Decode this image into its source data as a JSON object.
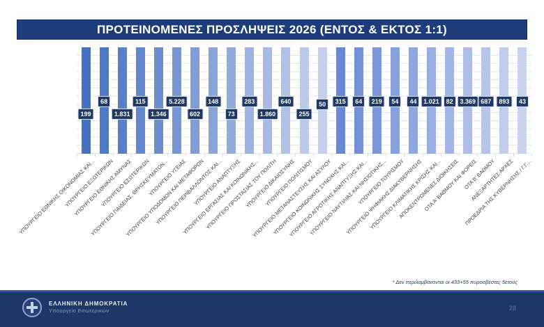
{
  "slide": {
    "title": "ΠΡΟΤΕΙΝΟΜΕΝΕΣ ΠΡΟΣΛΗΨΕΙΣ 2026 (ΕΝΤΟΣ & ΕΚΤΟΣ 1:1)",
    "footnote": "* Δεν περιλαμβάνονται οι 433+55 πυροσβέστες 5ετούς",
    "page_number": "28",
    "footer": {
      "org_name": "ΕΛΛΗΝΙΚΗ ΔΗΜΟΚΡΑΤΙΑ",
      "org_sub": "Υπουργείο Εσωτερικών"
    },
    "colors": {
      "title_bg": "#1E3B7A",
      "footer_bg": "#1C3768",
      "accent_line": "#2C55A5",
      "data_label_bg": "#1F3864"
    }
  },
  "chart_data": {
    "type": "bar",
    "title": "ΠΡΟΤΕΙΝΟΜΕΝΕΣ ΠΡΟΣΛΗΨΕΙΣ 2026 (ΕΝΤΟΣ & ΕΚΤΟΣ 1:1)",
    "categories": [
      "ΥΠΟΥΡΓΕΙΟ ΕΘΝΙΚΗΣ ΟΙΚΟΝΟΜΙΑΣ ΚΑΙ...",
      "ΥΠΟΥΡΓΕΙΟ ΕΞΩΤΕΡΙΚΩΝ",
      "ΥΠΟΥΡΓΕΙΟ ΕΘΝΙΚΗΣ ΑΜΥΝΑΣ",
      "ΥΠΟΥΡΓΕΙΟ ΕΣΩΤΕΡΙΚΩΝ",
      "ΥΠΟΥΡΓΕΙΟ ΠΑΙΔΕΙΑΣ, ΘΡΗΣΚΕΥΜΑΤΩΝ...",
      "ΥΠΟΥΡΓΕΙΟ ΥΓΕΙΑΣ",
      "ΥΠΟΥΡΓΕΙΟ ΥΠΟΔΟΜΩΝ ΚΑΙ ΜΕΤΑΦΟΡΩΝ",
      "ΥΠΟΥΡΓΕΙΟ ΠΕΡΙΒΑΛΛΟΝΤΟΣ ΚΑΙ...",
      "ΥΠΟΥΡΓΕΙΟ ΑΝΑΠΤΥΞΗΣ",
      "ΥΠΟΥΡΓΕΙΟ ΕΡΓΑΣΙΑΣ ΚΑΙ ΚΟΙΝΩΝΙΚΗΣ...",
      "ΥΠΟΥΡΓΕΙΟ ΠΡΟΣΤΑΣΙΑΣ ΤΟΥ ΠΟΛΙΤΗ",
      "ΥΠΟΥΡΓΕΙΟ ΔΙΚΑΙΟΣΥΝΗΣ",
      "ΥΠΟΥΡΓΕΙΟ ΠΟΛΙΤΙΣΜΟΥ",
      "ΥΠΟΥΡΓΕΙΟ ΜΕΤΑΝΑΣΤΕΥΣΗΣ ΚΑΙ ΑΣΥΛΟΥ",
      "ΥΠΟΥΡΓΕΙΟ ΚΟΙΝΩΝΙΚΗΣ ΣΥΝΟΧΗΣ ΚΑΙ...",
      "ΥΠΟΥΡΓΕΙΟ ΑΓΡΟΤΙΚΗΣ ΑΝΑΠΤΥΞΗΣ ΚΑΙ...",
      "ΥΠΟΥΡΓΕΙΟ ΝΑΥΤΙΛΙΑΣ ΚΑΙ ΝΗΣΙΩΤΙΚΗΣ...",
      "ΥΠΟΥΡΓΕΙΟ ΤΟΥΡΙΣΜΟΥ",
      "ΥΠΟΥΡΓΕΙΟ ΨΗΦΙΑΚΗΣ ΔΙΑΚΥΒΕΡΝΗΣΗΣ",
      "ΥΠΟΥΡΓΕΙΟ ΚΛΙΜΑΤΙΚΗΣ ΚΡΙΣΗΣ ΚΑΙ...",
      "ΑΠΟΚΕΝΤΡΩΜΕΝΕΣ ΔΙΟΙΚΗΣΕΙΣ",
      "ΟΤΑ Α' ΒΑΘΜΟΥ ΚΑΙ ΦΟΡΕΙΣ",
      "ΟΤΑ Β' ΒΑΘΜΟΥ",
      "ΑΝΕΞΑΡΤΗΤΕΣ ΑΡΧΕΣ",
      "ΠΡΟΕΔΡΙΑ ΤΗΣ ΚΥΒΕΡΝΗΣΗΣ / Γ.Γ...."
    ],
    "values": [
      199,
      68,
      1831,
      115,
      1346,
      5228,
      602,
      148,
      73,
      283,
      1860,
      640,
      255,
      50,
      315,
      64,
      219,
      54,
      44,
      1021,
      82,
      3369,
      687,
      893,
      43
    ],
    "value_labels": [
      "199",
      "68",
      "1.831",
      "115",
      "1.346",
      "5.228",
      "602",
      "148",
      "73",
      "283",
      "1.860",
      "640",
      "255",
      "50",
      "315",
      "64",
      "219",
      "54",
      "44",
      "1.021",
      "82",
      "3.369",
      "687",
      "893",
      "43"
    ],
    "bar_colors": [
      "#4472C4",
      "#4E79C7",
      "#5880CA",
      "#6288CD",
      "#6C8FD0",
      "#7696D3",
      "#809DD7",
      "#8AA5DA",
      "#94ACDD",
      "#9EB3E0",
      "#A8BAE3",
      "#B2C2E6",
      "#BCC9E9",
      "#C6D0EC",
      "#6A88D3",
      "#7490D6",
      "#7D97D9",
      "#879FDB",
      "#90A6DE",
      "#9AAEE1",
      "#A3B5E4",
      "#ADBDE6",
      "#B6C4E9",
      "#C0CCEC",
      "#C9D3EF"
    ],
    "label_row": [
      "low",
      "high",
      "low",
      "high",
      "low",
      "high",
      "low",
      "high",
      "low",
      "high",
      "low",
      "high",
      "low",
      "mid",
      "high",
      "high",
      "high",
      "high",
      "high",
      "high",
      "high",
      "high",
      "high",
      "high",
      "high"
    ],
    "xlabel": "",
    "ylabel": "",
    "legend": "none",
    "grid": "horizontal",
    "layout_note": "bars drawn full plot height; values conveyed by navy data-label boxes staggered in two rows"
  }
}
